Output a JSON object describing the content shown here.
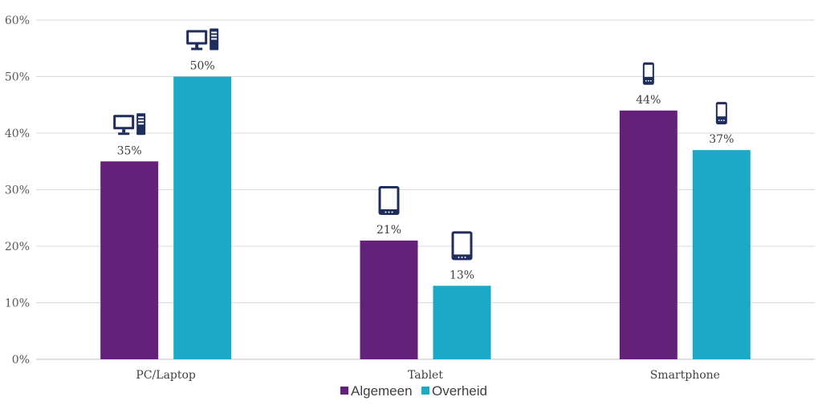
{
  "chart_data": {
    "type": "bar",
    "categories": [
      "PC/Laptop",
      "Tablet",
      "Smartphone"
    ],
    "category_icons": [
      "desktop-computer-icon",
      "tablet-icon",
      "smartphone-icon"
    ],
    "series": [
      {
        "name": "Algemeen",
        "values": [
          35,
          21,
          44
        ],
        "labels": [
          "35%",
          "21%",
          "44%"
        ],
        "color": "#63217a"
      },
      {
        "name": "Overheid",
        "values": [
          50,
          13,
          37
        ],
        "labels": [
          "50%",
          "13%",
          "37%"
        ],
        "color": "#1aaac8"
      }
    ],
    "ylim": [
      0,
      60
    ],
    "yticks": [
      0,
      10,
      20,
      30,
      40,
      50,
      60
    ],
    "ytick_labels": [
      "0%",
      "10%",
      "20%",
      "30%",
      "40%",
      "50%",
      "60%"
    ],
    "grid": true,
    "legend_position": "bottom",
    "icon_color": "#1f2d5c"
  }
}
